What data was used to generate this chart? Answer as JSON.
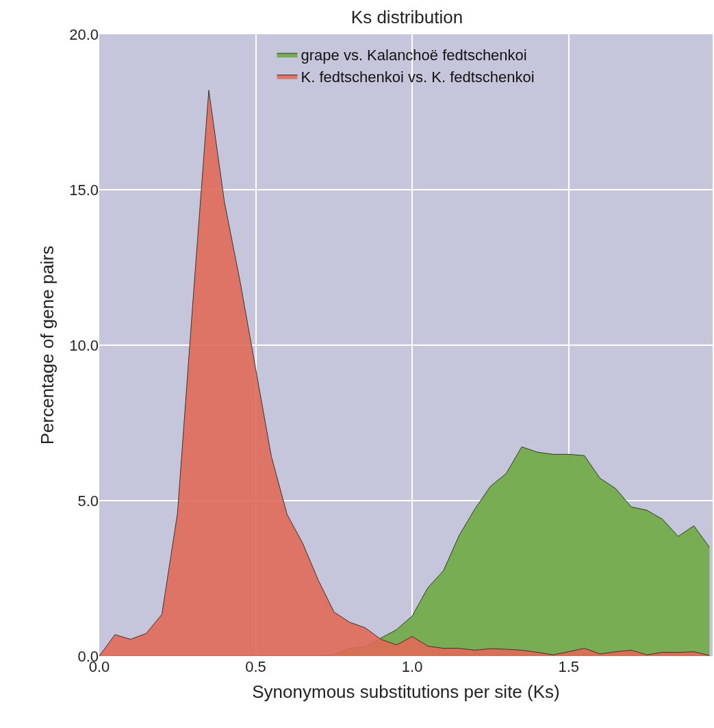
{
  "chart_data": {
    "type": "area",
    "title": "Ks distribution",
    "xlabel": "Synonymous substitutions per site (Ks)",
    "ylabel": "Percentage of gene pairs",
    "x": [
      0,
      0.05,
      0.1,
      0.15,
      0.2,
      0.25,
      0.3,
      0.35,
      0.4,
      0.45,
      0.5,
      0.55,
      0.6,
      0.65,
      0.7,
      0.75,
      0.8,
      0.85,
      0.9,
      0.95,
      1.0,
      1.05,
      1.1,
      1.15,
      1.2,
      1.25,
      1.3,
      1.35,
      1.4,
      1.45,
      1.5,
      1.55,
      1.6,
      1.65,
      1.7,
      1.75,
      1.8,
      1.85,
      1.9,
      1.95
    ],
    "series": [
      {
        "name": "grape vs. Kalanchoë fedtschenkoi",
        "color": "#78ad53",
        "values": [
          0,
          0,
          0,
          0,
          0,
          0,
          0,
          0,
          0,
          0,
          0,
          0,
          0,
          0,
          0,
          0.05,
          0.25,
          0.3,
          0.58,
          0.85,
          1.29,
          2.2,
          2.75,
          3.88,
          4.73,
          5.46,
          5.87,
          6.73,
          6.56,
          6.49,
          6.49,
          6.45,
          5.72,
          5.39,
          4.8,
          4.69,
          4.4,
          3.85,
          4.19,
          3.5
        ]
      },
      {
        "name": "K. fedtschenkoi vs. K. fedtschenkoi",
        "color": "#e06a58",
        "values": [
          0,
          0.69,
          0.54,
          0.73,
          1.34,
          4.6,
          11.5,
          18.2,
          14.6,
          12.05,
          9.23,
          6.42,
          4.56,
          3.63,
          2.44,
          1.42,
          1.09,
          0.91,
          0.54,
          0.36,
          0.63,
          0.32,
          0.25,
          0.25,
          0.19,
          0.24,
          0.22,
          0.19,
          0.12,
          0.04,
          0.14,
          0.25,
          0.07,
          0.14,
          0.19,
          0.04,
          0.12,
          0.12,
          0.14,
          0.02
        ]
      }
    ],
    "xlim": [
      0,
      1.96
    ],
    "xticks": [
      {
        "value": 0,
        "label": "0.0"
      },
      {
        "value": 0.5,
        "label": "0.5"
      },
      {
        "value": 1.0,
        "label": "1.0"
      },
      {
        "value": 1.5,
        "label": "1.5"
      }
    ],
    "ylim": [
      0,
      20
    ],
    "yticks": [
      {
        "value": 0,
        "label": "0.0"
      },
      {
        "value": 5,
        "label": "5.0"
      },
      {
        "value": 10,
        "label": "10.0"
      },
      {
        "value": 15,
        "label": "15.0"
      },
      {
        "value": 20,
        "label": "20.0"
      }
    ],
    "grid": true,
    "legend": "top"
  }
}
